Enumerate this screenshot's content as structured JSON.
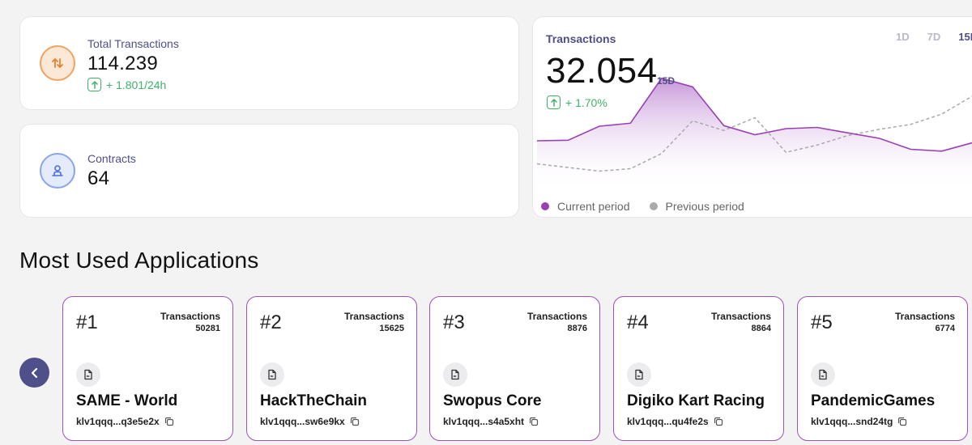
{
  "stats": {
    "total": {
      "label": "Total Transactions",
      "value": "114.239",
      "delta": "+ 1.801/24h",
      "icon": "swap-arrows-icon"
    },
    "contracts": {
      "label": "Contracts",
      "value": "64",
      "icon": "contract-user-icon"
    }
  },
  "transactions_chart": {
    "title": "Transactions",
    "value": "32.054",
    "period": "15D",
    "delta": "+ 1.70%",
    "ranges": [
      "1D",
      "7D",
      "15D"
    ],
    "active_range": "15D",
    "legend": {
      "current": "Current period",
      "previous": "Previous period"
    }
  },
  "chart_data": {
    "type": "area",
    "title": "Transactions",
    "x": [
      1,
      2,
      3,
      4,
      5,
      6,
      7,
      8,
      9,
      10,
      11,
      12,
      13,
      14,
      15
    ],
    "series": [
      {
        "name": "Current period",
        "values": [
          0.56,
          0.57,
          0.8,
          0.85,
          1.59,
          1.45,
          0.81,
          0.66,
          0.76,
          0.78,
          0.69,
          0.6,
          0.42,
          0.39,
          0.53
        ]
      },
      {
        "name": "Previous period",
        "values": [
          0.18,
          0.12,
          0.06,
          0.1,
          0.35,
          0.89,
          0.73,
          0.94,
          0.37,
          0.49,
          0.65,
          0.75,
          0.83,
          1.0,
          1.3
        ]
      }
    ],
    "ylim": [
      0,
      1.8
    ],
    "colors": {
      "current": "#9b3fb5",
      "previous": "#aaaaaa"
    },
    "xlabel": "",
    "ylabel": ""
  },
  "section": {
    "title": "Most Used Applications"
  },
  "apps": [
    {
      "rank": "#1",
      "tx_label": "Transactions",
      "tx_value": "50281",
      "name": "SAME - World",
      "address": "klv1qqq...q3e5e2x"
    },
    {
      "rank": "#2",
      "tx_label": "Transactions",
      "tx_value": "15625",
      "name": "HackTheChain",
      "address": "klv1qqq...sw6e9kx"
    },
    {
      "rank": "#3",
      "tx_label": "Transactions",
      "tx_value": "8876",
      "name": "Swopus Core",
      "address": "klv1qqq...s4a5xht"
    },
    {
      "rank": "#4",
      "tx_label": "Transactions",
      "tx_value": "8864",
      "name": "Digiko Kart Racing",
      "address": "klv1qqq...qu4fe2s"
    },
    {
      "rank": "#5",
      "tx_label": "Transactions",
      "tx_value": "6774",
      "name": "PandemicGames",
      "address": "klv1qqq...snd24tg"
    }
  ],
  "colors": {
    "accent": "#4f4f8a",
    "purple": "#9b3fb5",
    "green": "#3fb26a",
    "orange": "#f0a35f",
    "blue": "#8aa5ec"
  }
}
